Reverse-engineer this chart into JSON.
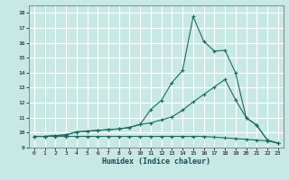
{
  "xlabel": "Humidex (Indice chaleur)",
  "background_color": "#c8e8e4",
  "grid_color": "#ffffff",
  "line_color": "#1a6b60",
  "xlim": [
    -0.5,
    23.5
  ],
  "ylim": [
    9,
    18.5
  ],
  "yticks": [
    9,
    10,
    11,
    12,
    13,
    14,
    15,
    16,
    17,
    18
  ],
  "xticks": [
    0,
    1,
    2,
    3,
    4,
    5,
    6,
    7,
    8,
    9,
    10,
    11,
    12,
    13,
    14,
    15,
    16,
    17,
    18,
    19,
    20,
    21,
    22,
    23
  ],
  "series": [
    {
      "x": [
        0,
        1,
        2,
        3,
        4,
        5,
        6,
        7,
        8,
        9,
        10,
        11,
        12,
        13,
        14,
        15,
        16,
        17,
        18,
        19,
        20,
        21,
        22,
        23
      ],
      "y": [
        9.75,
        9.75,
        9.8,
        9.85,
        10.05,
        10.1,
        10.15,
        10.2,
        10.25,
        10.35,
        10.55,
        11.55,
        12.15,
        13.35,
        14.15,
        17.75,
        16.1,
        15.45,
        15.5,
        14.0,
        11.0,
        10.5,
        9.5,
        9.3
      ]
    },
    {
      "x": [
        0,
        1,
        2,
        3,
        4,
        5,
        6,
        7,
        8,
        9,
        10,
        11,
        12,
        13,
        14,
        15,
        16,
        17,
        18,
        19,
        20,
        21,
        22,
        23
      ],
      "y": [
        9.75,
        9.75,
        9.8,
        9.85,
        10.05,
        10.1,
        10.15,
        10.2,
        10.25,
        10.35,
        10.55,
        10.65,
        10.85,
        11.05,
        11.5,
        12.05,
        12.55,
        13.05,
        13.55,
        12.2,
        11.0,
        10.5,
        9.5,
        9.3
      ]
    },
    {
      "x": [
        0,
        1,
        2,
        3,
        4,
        5,
        6,
        7,
        8,
        9,
        10,
        11,
        12,
        13,
        14,
        15,
        16,
        17,
        18,
        19,
        20,
        21,
        22,
        23
      ],
      "y": [
        9.75,
        9.75,
        9.75,
        9.75,
        9.75,
        9.75,
        9.75,
        9.75,
        9.75,
        9.75,
        9.75,
        9.75,
        9.75,
        9.75,
        9.75,
        9.75,
        9.75,
        9.7,
        9.65,
        9.6,
        9.55,
        9.5,
        9.45,
        9.3
      ]
    }
  ]
}
